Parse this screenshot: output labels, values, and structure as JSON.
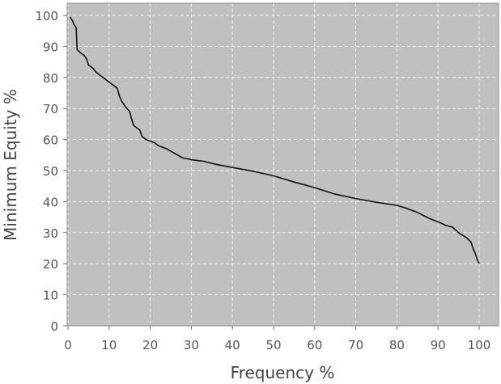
{
  "chart_data": {
    "type": "line",
    "title": "",
    "xlabel": "Frequency %",
    "ylabel": "Minimum Equity %",
    "xlim": [
      0,
      100
    ],
    "ylim": [
      0,
      100
    ],
    "xticks": [
      0,
      10,
      20,
      30,
      40,
      50,
      60,
      70,
      80,
      90,
      100
    ],
    "yticks": [
      0,
      10,
      20,
      30,
      40,
      50,
      60,
      70,
      80,
      90,
      100
    ],
    "grid": true,
    "colors": {
      "plot_background": "#c0c0c0",
      "line": "#111111",
      "grid": "#ffffff"
    },
    "series": [
      {
        "x": [
          0.5,
          1.0,
          1.5,
          2.0,
          2.2,
          3.0,
          4.0,
          4.5,
          5.0,
          6.0,
          7.0,
          8.0,
          9.0,
          10.0,
          11.0,
          12.0,
          12.5,
          13.0,
          14.0,
          15.0,
          15.5,
          16.0,
          17.0,
          17.5,
          18.0,
          19.0,
          20.0,
          21.0,
          22.0,
          24.0,
          26.0,
          28.0,
          29.0,
          30.0,
          33.0,
          36.0,
          40.0,
          45.0,
          50.0,
          55.0,
          60.0,
          65.0,
          70.0,
          75.0,
          80.0,
          82.0,
          85.0,
          88.0,
          90.0,
          92.0,
          93.5,
          95.0,
          97.0,
          98.0,
          98.5,
          99.0,
          99.5,
          100.0
        ],
        "y": [
          99.5,
          98.5,
          97.0,
          96.0,
          89.0,
          88.0,
          87.0,
          86.0,
          84.0,
          83.0,
          81.5,
          80.5,
          79.5,
          78.5,
          77.5,
          76.5,
          74.0,
          72.5,
          70.5,
          69.0,
          66.5,
          64.5,
          63.5,
          63.0,
          61.0,
          60.0,
          59.5,
          59.0,
          58.0,
          57.0,
          55.5,
          54.0,
          53.8,
          53.5,
          53.0,
          52.0,
          51.0,
          49.8,
          48.3,
          46.3,
          44.5,
          42.4,
          41.0,
          39.8,
          38.8,
          38.0,
          36.5,
          34.5,
          33.5,
          32.3,
          31.8,
          30.0,
          28.3,
          27.0,
          25.0,
          23.5,
          21.5,
          20.0
        ]
      }
    ]
  }
}
